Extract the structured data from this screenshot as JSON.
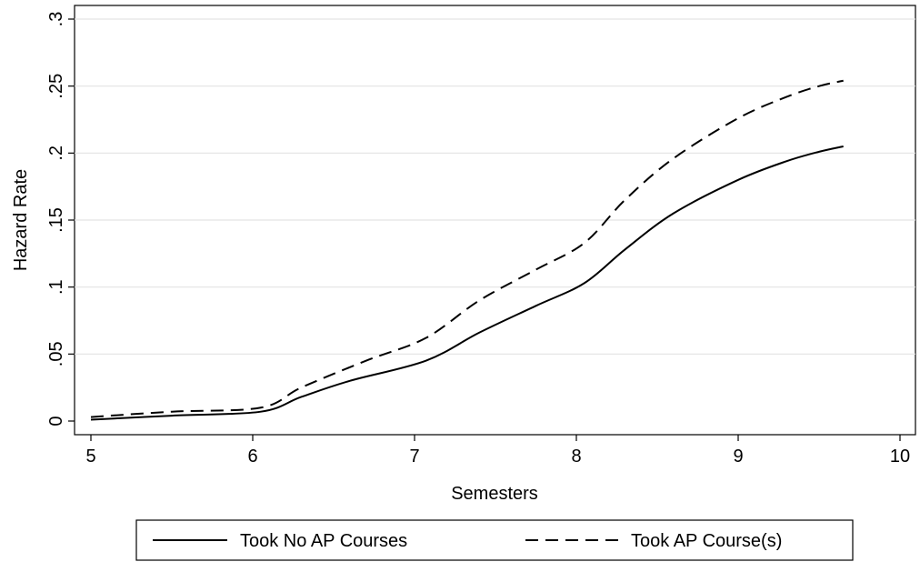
{
  "chart_data": {
    "type": "line",
    "title": "",
    "xlabel": "Semesters",
    "ylabel": "Hazard Rate",
    "xlim": [
      5,
      10
    ],
    "ylim": [
      0,
      0.3
    ],
    "x_ticks": [
      5,
      6,
      7,
      8,
      9,
      10
    ],
    "x_tick_labels": [
      "5",
      "6",
      "7",
      "8",
      "9",
      "10"
    ],
    "y_ticks": [
      0,
      0.05,
      0.1,
      0.15,
      0.2,
      0.25,
      0.3
    ],
    "y_tick_labels": [
      "0",
      ".05",
      ".1",
      ".15",
      ".2",
      ".25",
      ".3"
    ],
    "grid": "horizontal",
    "legend_position": "bottom",
    "series": [
      {
        "name": "Took No AP Courses",
        "line_style": "solid",
        "color": "#000000",
        "points": [
          [
            5.0,
            0.001
          ],
          [
            5.5,
            0.004
          ],
          [
            6.05,
            0.007
          ],
          [
            6.3,
            0.018
          ],
          [
            6.6,
            0.03
          ],
          [
            7.07,
            0.045
          ],
          [
            7.4,
            0.066
          ],
          [
            7.75,
            0.086
          ],
          [
            8.05,
            0.103
          ],
          [
            8.3,
            0.128
          ],
          [
            8.6,
            0.155
          ],
          [
            9.0,
            0.18
          ],
          [
            9.3,
            0.194
          ],
          [
            9.5,
            0.201
          ],
          [
            9.65,
            0.205
          ]
        ]
      },
      {
        "name": "Took AP Course(s)",
        "line_style": "dashed",
        "color": "#000000",
        "points": [
          [
            5.0,
            0.003
          ],
          [
            5.5,
            0.007
          ],
          [
            6.05,
            0.01
          ],
          [
            6.3,
            0.025
          ],
          [
            6.7,
            0.045
          ],
          [
            7.07,
            0.062
          ],
          [
            7.4,
            0.09
          ],
          [
            7.75,
            0.113
          ],
          [
            8.05,
            0.133
          ],
          [
            8.3,
            0.165
          ],
          [
            8.6,
            0.196
          ],
          [
            9.0,
            0.226
          ],
          [
            9.3,
            0.242
          ],
          [
            9.5,
            0.25
          ],
          [
            9.65,
            0.254
          ]
        ]
      }
    ]
  }
}
